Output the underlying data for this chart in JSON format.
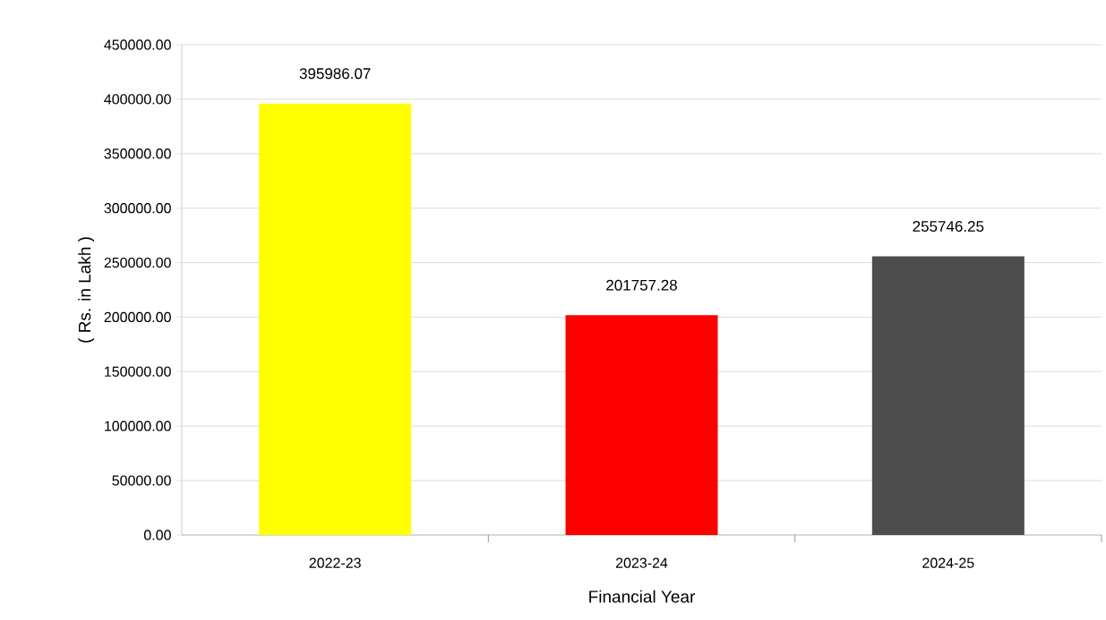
{
  "chart_data": {
    "type": "bar",
    "xlabel": "Financial Year",
    "ylabel": "( Rs. in Lakh )",
    "categories": [
      "2022-23",
      "2023-24",
      "2024-25"
    ],
    "values": [
      395986.07,
      201757.28,
      255746.25
    ],
    "colors": [
      "#ffff00",
      "#ff0000",
      "#4d4d4d"
    ],
    "ylim": [
      0,
      450000
    ],
    "yticks": [
      {
        "value": 0,
        "label": "0.00"
      },
      {
        "value": 50000,
        "label": "50000.00"
      },
      {
        "value": 100000,
        "label": "100000.00"
      },
      {
        "value": 150000,
        "label": "150000.00"
      },
      {
        "value": 200000,
        "label": "200000.00"
      },
      {
        "value": 250000,
        "label": "250000.00"
      },
      {
        "value": 300000,
        "label": "300000.00"
      },
      {
        "value": 350000,
        "label": "350000.00"
      },
      {
        "value": 400000,
        "label": "400000.00"
      },
      {
        "value": 450000,
        "label": "450000.00"
      }
    ],
    "grid": "y",
    "data_labels": true
  }
}
